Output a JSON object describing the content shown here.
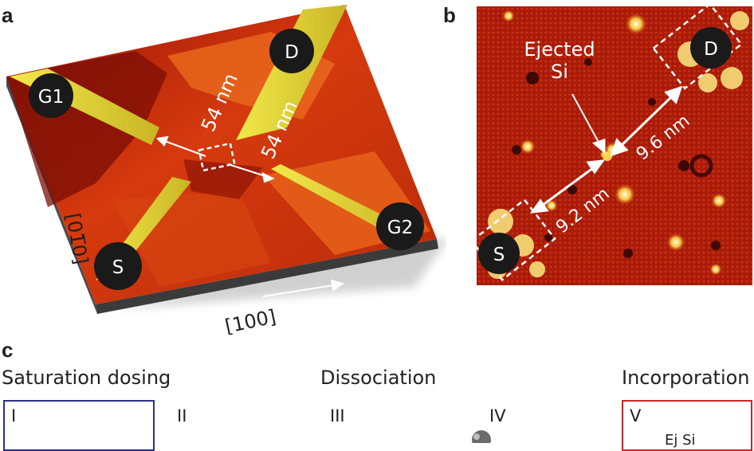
{
  "panel_a": {
    "letter": "a",
    "electrodes": {
      "g1": "G1",
      "d": "D",
      "s": "S",
      "g2": "G2"
    },
    "dist_upper": "54 nm",
    "dist_lower": "54 nm",
    "axis_x": "[100]",
    "axis_y": "[01̅0]"
  },
  "panel_b": {
    "letter": "b",
    "annotation_line1": "Ejected",
    "annotation_line2": "Si",
    "dist_upper": "9.6 nm",
    "dist_lower": "9.2 nm",
    "electrodes": {
      "d": "D",
      "s": "S"
    }
  },
  "panel_c": {
    "letter": "c",
    "headings": {
      "saturation": "Saturation dosing",
      "dissociation": "Dissociation",
      "incorporation": "Incorporation"
    },
    "stages": [
      "I",
      "II",
      "III",
      "IV",
      "V"
    ],
    "partial_label": "Ej Si"
  },
  "colors": {
    "dark_red": "#7a0b04",
    "red": "#c0240c",
    "orange": "#e06618",
    "yellow": "#e8e02a",
    "box_blue": "#2a2f8a",
    "box_red": "#c8262a"
  }
}
